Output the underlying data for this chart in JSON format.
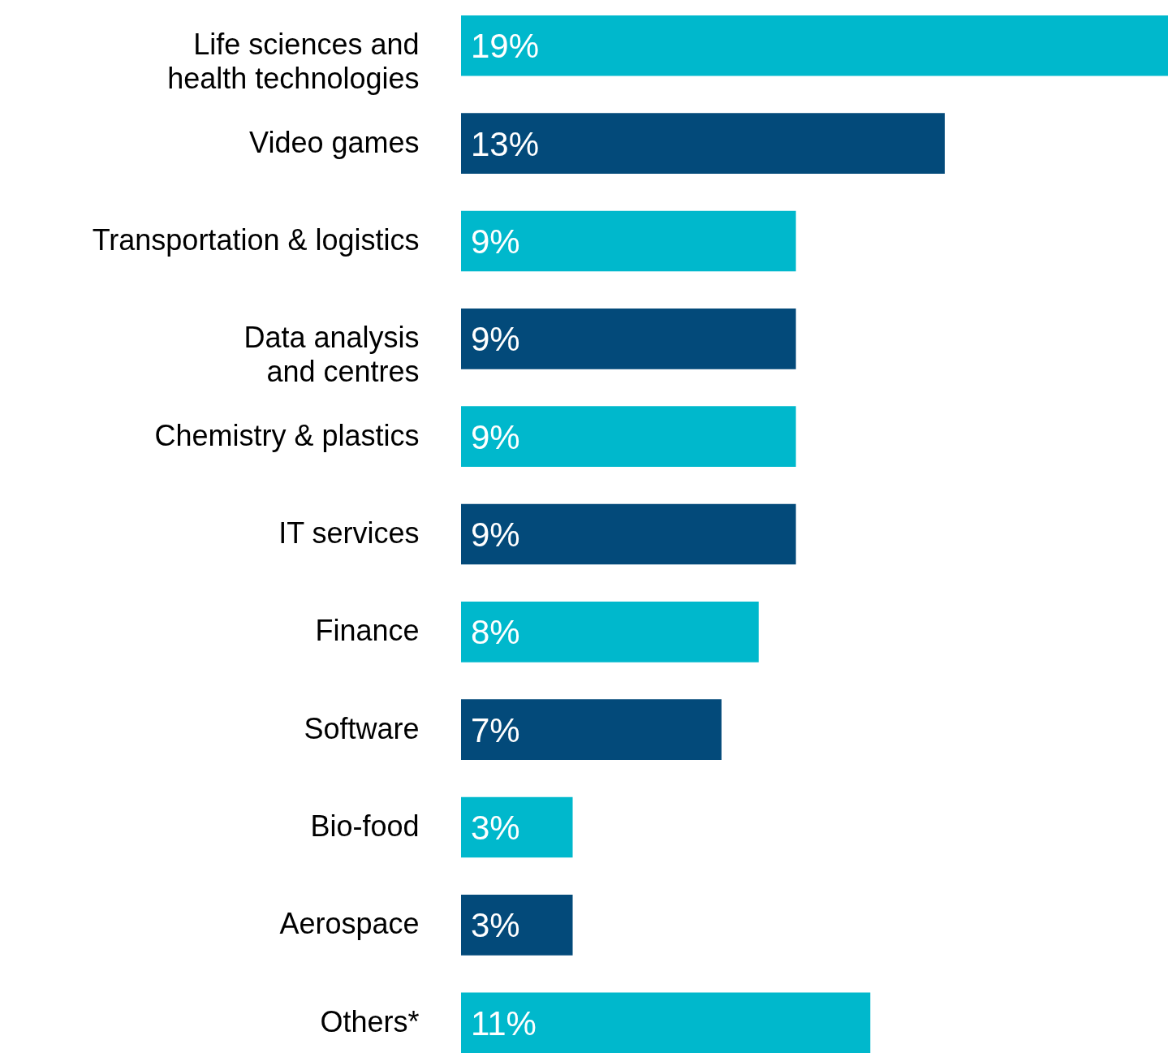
{
  "chart_data": {
    "type": "bar",
    "orientation": "horizontal",
    "categories": [
      "Life sciences and\nhealth technologies",
      "Video games",
      "Transportation & logistics",
      "Data analysis\nand centres",
      "Chemistry & plastics",
      "IT services",
      "Finance",
      "Software",
      "Bio-food",
      "Aerospace",
      "Others*"
    ],
    "values": [
      19,
      13,
      9,
      9,
      9,
      9,
      8,
      7,
      3,
      3,
      11
    ],
    "value_labels": [
      "19%",
      "13%",
      "9%",
      "9%",
      "9%",
      "9%",
      "8%",
      "7%",
      "3%",
      "3%",
      "11%"
    ],
    "colors": [
      "#00b8cc",
      "#034a7a",
      "#00b8cc",
      "#034a7a",
      "#00b8cc",
      "#034a7a",
      "#00b8cc",
      "#034a7a",
      "#00b8cc",
      "#034a7a",
      "#00b8cc"
    ],
    "legend": false
  }
}
